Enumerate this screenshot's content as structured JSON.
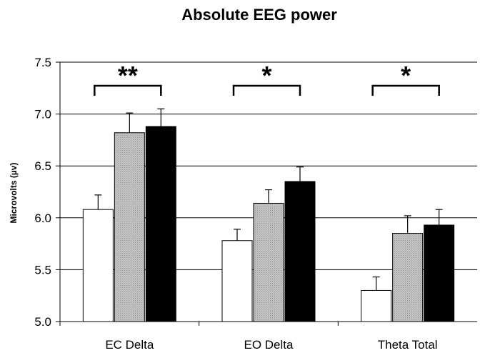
{
  "chart_data": {
    "type": "bar",
    "title": "Absolute EEG power",
    "xlabel": "",
    "ylabel": "Microvolts (µv)",
    "ylim": [
      5.0,
      7.5
    ],
    "yticks": [
      "5.0",
      "5.5",
      "6.0",
      "6.5",
      "7.0",
      "7.5"
    ],
    "grid": true,
    "legend": "none",
    "categories": [
      "EC Delta",
      "EO Delta",
      "Theta Total"
    ],
    "series": [
      {
        "color": "#ffffff",
        "fill": "solid-white",
        "values": [
          6.08,
          5.78,
          5.3
        ],
        "errors": [
          0.14,
          0.11,
          0.13
        ]
      },
      {
        "color": "#b8b8b8",
        "fill": "gray-dotted",
        "values": [
          6.82,
          6.14,
          5.85
        ],
        "errors": [
          0.19,
          0.13,
          0.17
        ]
      },
      {
        "color": "#000000",
        "fill": "solid-black",
        "values": [
          6.88,
          6.35,
          5.93
        ],
        "errors": [
          0.17,
          0.14,
          0.15
        ]
      }
    ],
    "significance": [
      "**",
      "*",
      "*"
    ]
  }
}
